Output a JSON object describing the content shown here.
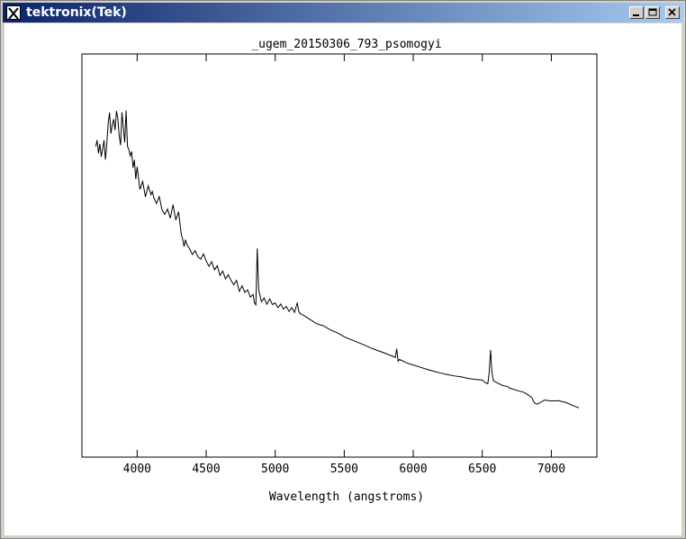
{
  "window": {
    "title": "tektronix(Tek)",
    "icons": {
      "app": "x-logo-icon",
      "minimize": "minimize-icon",
      "maximize": "maximize-icon",
      "close": "close-icon"
    },
    "colors": {
      "titlebar_start": "#0a246a",
      "titlebar_end": "#a6caf0",
      "plot_line": "#000000",
      "background": "#ffffff"
    }
  },
  "chart_data": {
    "type": "line",
    "title": "_ugem_20150306_793_psomogyi",
    "xlabel": "Wavelength (angstroms)",
    "ylabel": "",
    "xlim": [
      3600,
      7330
    ],
    "ylim": [
      0,
      1
    ],
    "xticks": [
      4000,
      4500,
      5000,
      5500,
      6000,
      6500,
      7000
    ],
    "grid": false,
    "legend": "none",
    "series": [
      {
        "x": [
          3700,
          3710,
          3720,
          3730,
          3740,
          3750,
          3760,
          3770,
          3780,
          3790,
          3800,
          3810,
          3820,
          3830,
          3840,
          3850,
          3860,
          3870,
          3880,
          3890,
          3900,
          3910,
          3920,
          3930,
          3940,
          3950,
          3960,
          3970,
          3980,
          3990,
          4000,
          4020,
          4040,
          4060,
          4080,
          4100,
          4110,
          4120,
          4140,
          4160,
          4180,
          4200,
          4220,
          4240,
          4260,
          4280,
          4300,
          4320,
          4330,
          4340,
          4350,
          4360,
          4380,
          4400,
          4420,
          4440,
          4460,
          4480,
          4500,
          4520,
          4540,
          4560,
          4580,
          4600,
          4620,
          4640,
          4660,
          4680,
          4700,
          4720,
          4740,
          4760,
          4780,
          4800,
          4820,
          4840,
          4850,
          4860,
          4870,
          4880,
          4900,
          4920,
          4940,
          4960,
          4980,
          5000,
          5020,
          5040,
          5060,
          5080,
          5100,
          5120,
          5140,
          5160,
          5170,
          5180,
          5200,
          5250,
          5300,
          5350,
          5400,
          5450,
          5500,
          5550,
          5600,
          5650,
          5700,
          5750,
          5800,
          5850,
          5870,
          5880,
          5890,
          5900,
          5950,
          6000,
          6050,
          6100,
          6150,
          6200,
          6250,
          6300,
          6350,
          6400,
          6450,
          6500,
          6520,
          6540,
          6550,
          6560,
          6570,
          6580,
          6600,
          6650,
          6680,
          6700,
          6750,
          6800,
          6820,
          6840,
          6860,
          6870,
          6880,
          6900,
          6950,
          7000,
          7050,
          7100,
          7150,
          7200
        ],
        "y": [
          0.814,
          0.834,
          0.792,
          0.822,
          0.781,
          0.805,
          0.834,
          0.772,
          0.821,
          0.887,
          0.922,
          0.855,
          0.882,
          0.901,
          0.866,
          0.927,
          0.904,
          0.849,
          0.818,
          0.923,
          0.874,
          0.827,
          0.929,
          0.814,
          0.804,
          0.784,
          0.798,
          0.746,
          0.771,
          0.71,
          0.749,
          0.677,
          0.702,
          0.653,
          0.688,
          0.66,
          0.67,
          0.651,
          0.632,
          0.654,
          0.612,
          0.597,
          0.614,
          0.585,
          0.628,
          0.579,
          0.605,
          0.532,
          0.518,
          0.494,
          0.516,
          0.501,
          0.487,
          0.469,
          0.481,
          0.462,
          0.454,
          0.471,
          0.448,
          0.431,
          0.446,
          0.42,
          0.433,
          0.402,
          0.416,
          0.391,
          0.404,
          0.386,
          0.372,
          0.386,
          0.351,
          0.369,
          0.348,
          0.356,
          0.333,
          0.341,
          0.314,
          0.308,
          0.488,
          0.357,
          0.318,
          0.33,
          0.31,
          0.327,
          0.309,
          0.314,
          0.299,
          0.311,
          0.294,
          0.303,
          0.287,
          0.299,
          0.284,
          0.315,
          0.288,
          0.28,
          0.276,
          0.262,
          0.248,
          0.241,
          0.228,
          0.219,
          0.206,
          0.197,
          0.188,
          0.179,
          0.169,
          0.161,
          0.153,
          0.144,
          0.14,
          0.168,
          0.128,
          0.134,
          0.123,
          0.116,
          0.109,
          0.102,
          0.096,
          0.09,
          0.085,
          0.081,
          0.078,
          0.073,
          0.07,
          0.068,
          0.06,
          0.056,
          0.092,
          0.164,
          0.092,
          0.066,
          0.061,
          0.05,
          0.048,
          0.042,
          0.035,
          0.029,
          0.024,
          0.018,
          0.011,
          0.001,
          -0.006,
          -0.009,
          0.004,
          0.001,
          0.002,
          -0.003,
          -0.012,
          -0.021
        ]
      }
    ]
  }
}
